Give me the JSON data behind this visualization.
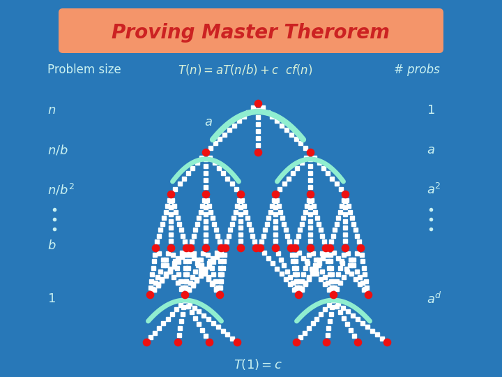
{
  "bg_color": "#2878B8",
  "title_text": "Proving Master Therorem",
  "title_bg": "#F4956A",
  "title_color": "#CC2222",
  "label_color": "#C8F0F0",
  "formula_color": "#D8F0D8",
  "dot_color": "#EE1010",
  "arc_color": "#90EED0",
  "figsize": [
    7.2,
    5.4
  ],
  "dpi": 100
}
